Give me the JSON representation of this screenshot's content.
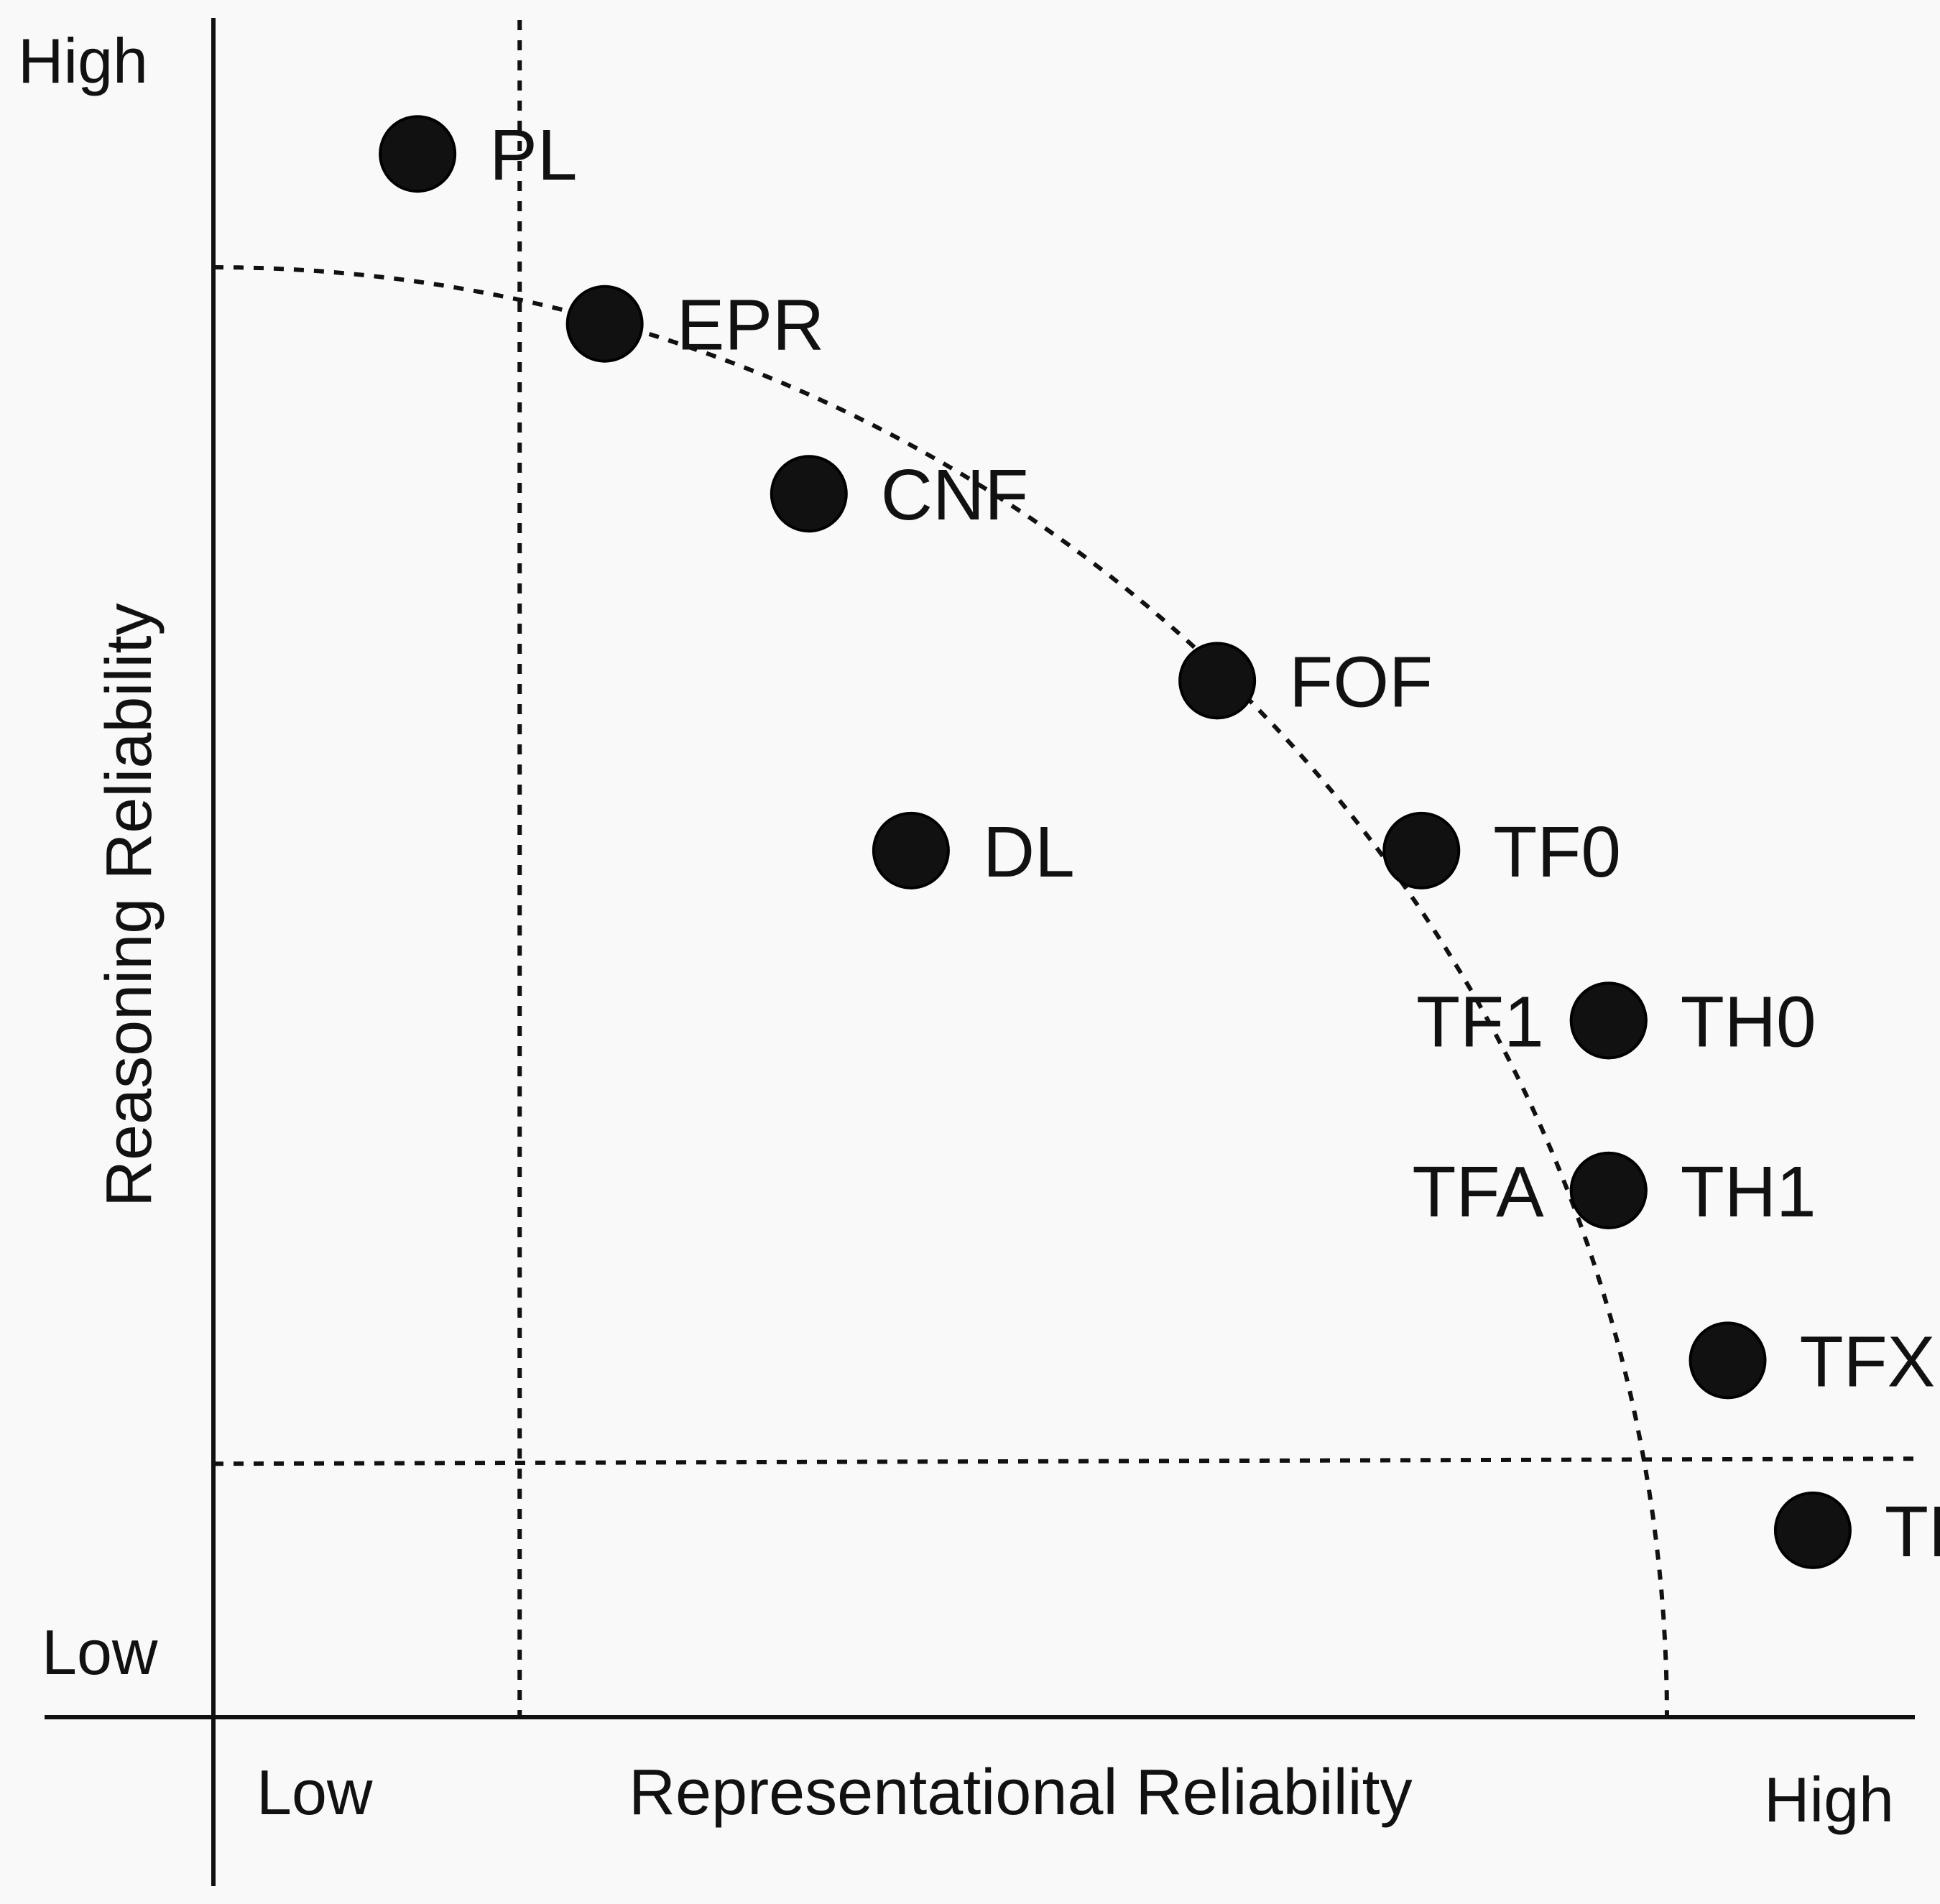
{
  "chart_data": {
    "type": "scatter",
    "xlabel": "Representational Reliability",
    "ylabel": "Reasoning Reliability",
    "x_low_label": "Low",
    "x_high_label": "High",
    "y_low_label": "Low",
    "y_high_label": "High",
    "xlim": [
      0,
      100
    ],
    "ylim": [
      0,
      100
    ],
    "grid": false,
    "reference_lines": {
      "x": 18,
      "y": 15
    },
    "frontier_curve": "dashed quarter-ellipse from top-left to bottom-right",
    "points": [
      {
        "label": "PL",
        "x": 12,
        "y": 92,
        "label_side": "right"
      },
      {
        "label": "EPR",
        "x": 23,
        "y": 82,
        "label_side": "right"
      },
      {
        "label": "CNF",
        "x": 35,
        "y": 72,
        "label_side": "right"
      },
      {
        "label": "FOF",
        "x": 59,
        "y": 61,
        "label_side": "right"
      },
      {
        "label": "DL",
        "x": 41,
        "y": 51,
        "label_side": "right"
      },
      {
        "label": "TF0",
        "x": 71,
        "y": 51,
        "label_side": "right"
      },
      {
        "label": "TF1",
        "x": 82,
        "y": 41,
        "label_side": "left"
      },
      {
        "label": "TH0",
        "x": 82,
        "y": 41,
        "label_side": "right"
      },
      {
        "label": "TFA",
        "x": 82,
        "y": 31,
        "label_side": "left"
      },
      {
        "label": "TH1",
        "x": 82,
        "y": 31,
        "label_side": "right"
      },
      {
        "label": "TFX",
        "x": 89,
        "y": 21,
        "label_side": "right"
      },
      {
        "label": "THX",
        "x": 94,
        "y": 11,
        "label_side": "right"
      }
    ],
    "colors": {
      "point": "#111111",
      "line": "#111111",
      "background": "#f9f9f9"
    }
  }
}
